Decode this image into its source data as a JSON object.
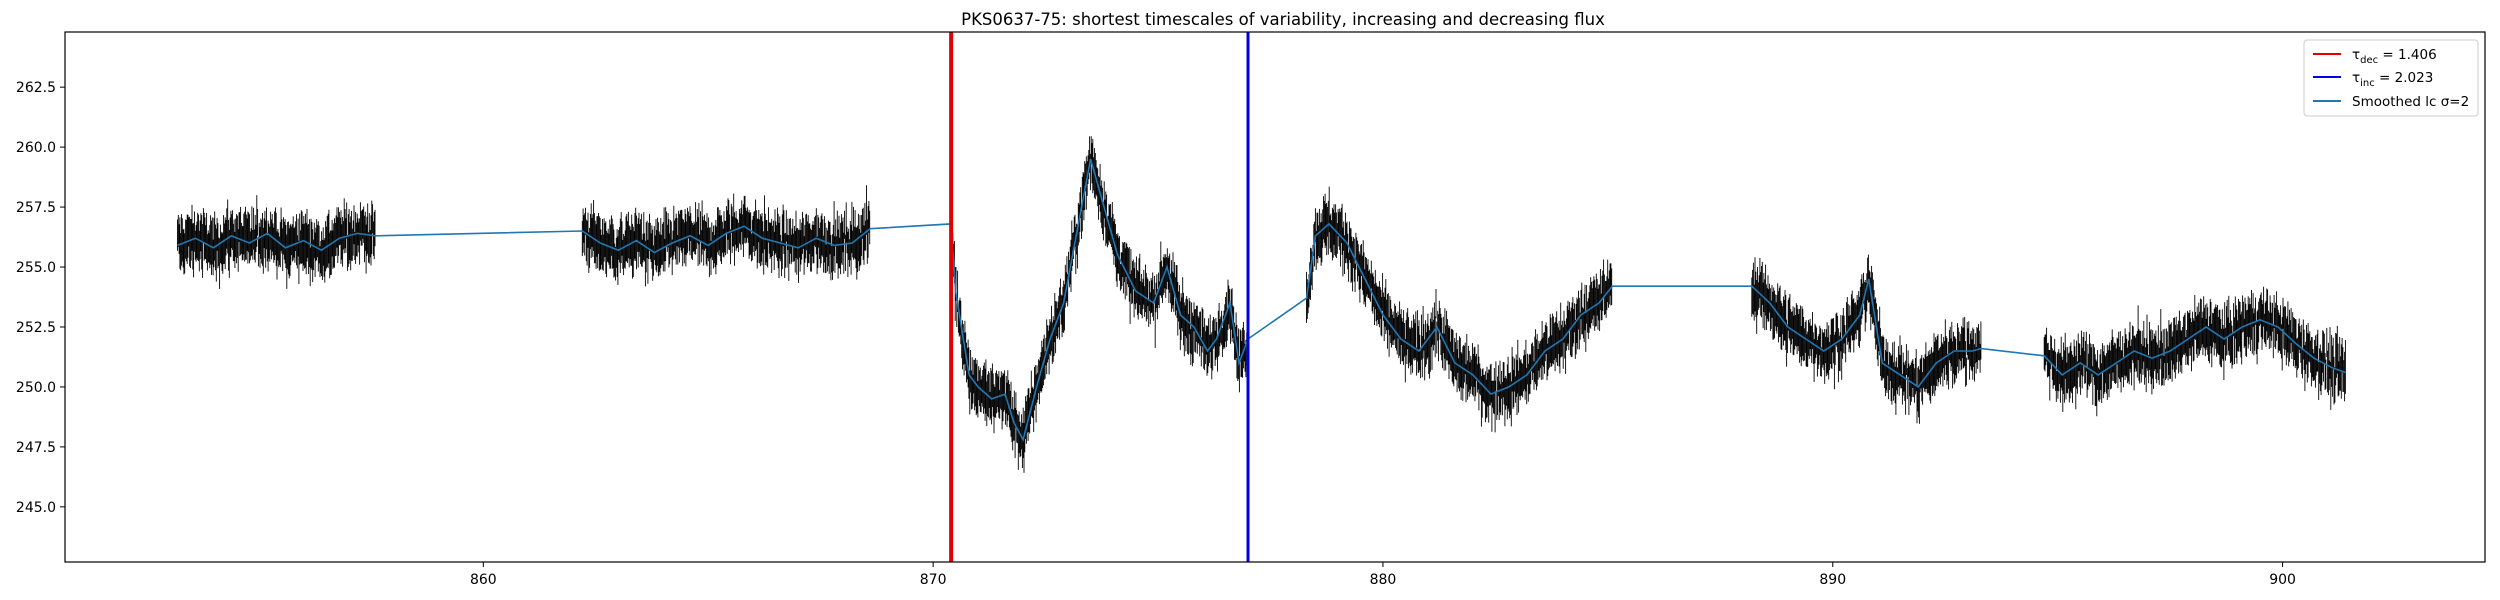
{
  "chart_data": {
    "type": "line",
    "title": "PKS0637-75: shortest timescales of variability, increasing and decreasing flux",
    "xlabel": "",
    "ylabel": "",
    "xlim": [
      850.7,
      904.5
    ],
    "ylim": [
      242.7,
      264.8
    ],
    "x_ticks": [
      860,
      870,
      880,
      890,
      900
    ],
    "x_tick_labels": [
      "860",
      "870",
      "880",
      "890",
      "900"
    ],
    "y_ticks": [
      245.0,
      247.5,
      250.0,
      252.5,
      255.0,
      257.5,
      260.0,
      262.5
    ],
    "y_tick_labels": [
      "245.0",
      "247.5",
      "250.0",
      "252.5",
      "255.0",
      "257.5",
      "260.0",
      "262.5"
    ],
    "grid": false,
    "legend_position": "top-right",
    "vlines": [
      {
        "x": 870.4,
        "color": "#e00000",
        "legend": "τdec = 1.406",
        "symbol": "τ",
        "subscript": "dec",
        "value_text": " = 1.406"
      },
      {
        "x": 877.0,
        "color": "#0000e0",
        "legend": "τinc = 2.023",
        "symbol": "τ",
        "subscript": "inc",
        "value_text": " = 2.023"
      }
    ],
    "errorbar_color": "#000000",
    "series": [
      {
        "name": "Smoothed lc σ=2",
        "color": "#1f77b4",
        "x": [
          853.2,
          853.6,
          854.0,
          854.4,
          854.8,
          855.2,
          855.6,
          856.0,
          856.4,
          856.8,
          857.2,
          857.6,
          862.2,
          862.6,
          863.0,
          863.4,
          863.8,
          864.2,
          864.6,
          865.0,
          865.4,
          865.8,
          866.2,
          866.6,
          867.0,
          867.4,
          867.8,
          868.2,
          868.6,
          870.4,
          870.5,
          870.8,
          871.0,
          871.3,
          871.6,
          871.8,
          872.0,
          872.3,
          872.6,
          872.9,
          873.2,
          873.5,
          873.8,
          874.1,
          874.5,
          874.9,
          875.2,
          875.5,
          875.8,
          876.1,
          876.3,
          876.6,
          876.8,
          877.0,
          878.3,
          878.5,
          878.8,
          879.2,
          879.6,
          880.0,
          880.4,
          880.8,
          881.2,
          881.6,
          882.0,
          882.4,
          882.8,
          883.2,
          883.6,
          884.0,
          884.4,
          884.8,
          885.1,
          888.2,
          888.6,
          889.0,
          889.4,
          889.8,
          890.2,
          890.6,
          890.8,
          891.1,
          891.5,
          891.9,
          892.3,
          892.7,
          893.1,
          893.3,
          894.7,
          895.1,
          895.5,
          895.9,
          896.3,
          896.7,
          897.1,
          897.5,
          897.9,
          898.3,
          898.7,
          899.1,
          899.5,
          899.9,
          900.3,
          900.7,
          901.1,
          901.4
        ],
        "values": [
          255.9,
          256.2,
          255.8,
          256.3,
          256.0,
          256.4,
          255.8,
          256.1,
          255.7,
          256.2,
          256.4,
          256.3,
          256.5,
          256.0,
          255.7,
          256.1,
          255.6,
          256.0,
          256.3,
          255.9,
          256.4,
          256.7,
          256.2,
          256.0,
          255.8,
          256.2,
          255.9,
          256.0,
          256.6,
          256.8,
          254.0,
          250.5,
          250.0,
          249.5,
          249.7,
          248.5,
          247.8,
          250.0,
          252.0,
          253.5,
          256.5,
          259.5,
          257.5,
          255.5,
          254.0,
          253.5,
          255.0,
          253.0,
          252.5,
          251.5,
          252.0,
          253.5,
          251.0,
          252.0,
          253.7,
          256.3,
          256.8,
          256.0,
          254.5,
          253.0,
          252.0,
          251.5,
          252.5,
          251.0,
          250.5,
          249.7,
          250.0,
          250.5,
          251.5,
          252.0,
          253.0,
          253.5,
          254.2,
          254.2,
          253.5,
          252.5,
          252.0,
          251.5,
          252.0,
          253.0,
          254.5,
          251.0,
          250.5,
          250.0,
          251.0,
          251.5,
          251.5,
          251.6,
          251.3,
          250.5,
          251.0,
          250.5,
          251.0,
          251.5,
          251.2,
          251.5,
          252.0,
          252.5,
          252.0,
          252.5,
          252.8,
          252.5,
          251.8,
          251.2,
          250.8,
          250.6
        ]
      }
    ]
  }
}
